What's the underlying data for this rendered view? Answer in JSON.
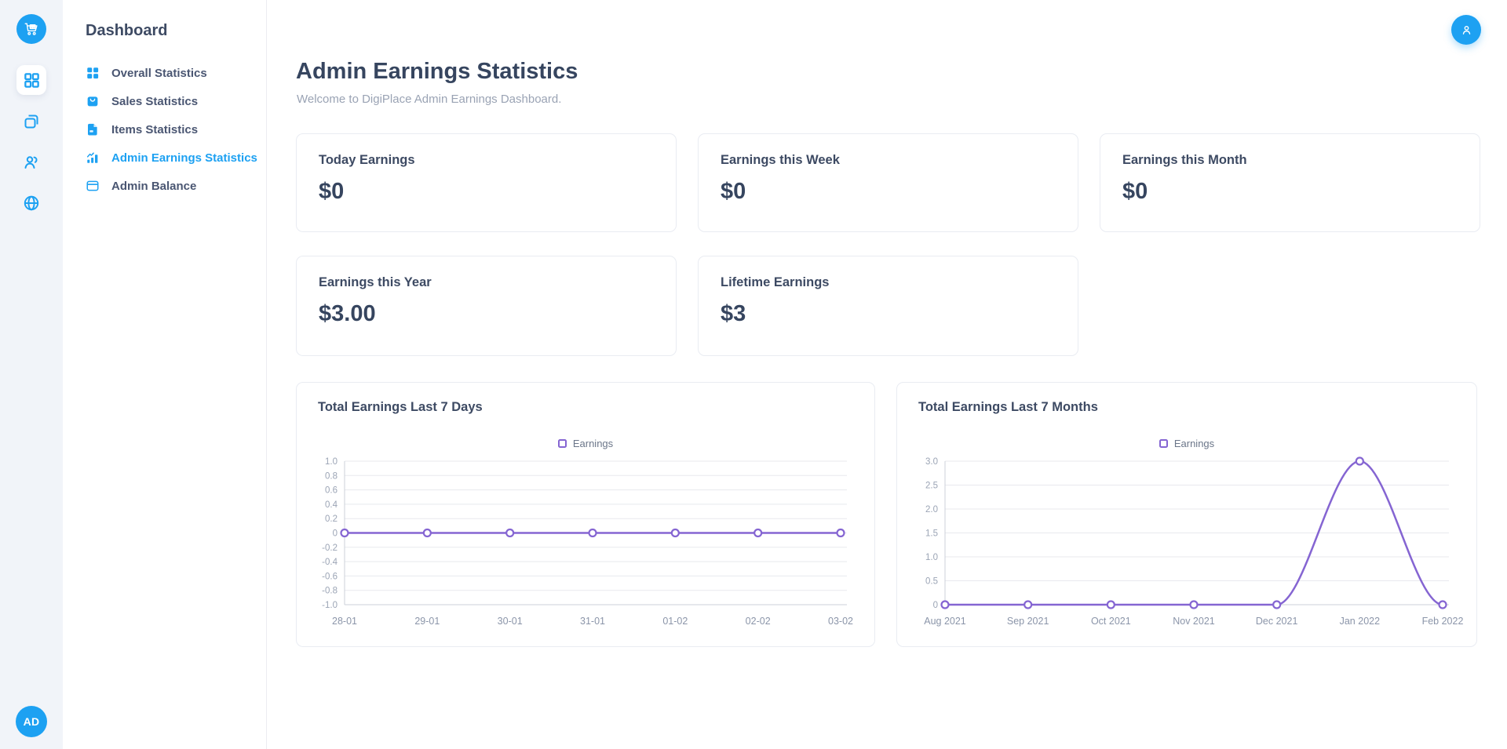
{
  "app": {
    "accent_color": "#1da1f2",
    "chart_line_color": "#8565d2"
  },
  "sidebar": {
    "avatar_initials": "AD",
    "panel_title": "Dashboard",
    "items": [
      {
        "label": "Overall Statistics",
        "icon": "grid-icon",
        "active": false
      },
      {
        "label": "Sales Statistics",
        "icon": "bag-icon",
        "active": false
      },
      {
        "label": "Items Statistics",
        "icon": "file-icon",
        "active": false
      },
      {
        "label": "Admin Earnings Statistics",
        "icon": "bar-chart-icon",
        "active": true
      },
      {
        "label": "Admin Balance",
        "icon": "credit-card-icon",
        "active": false
      }
    ]
  },
  "header": {
    "title": "Admin Earnings Statistics",
    "subtitle": "Welcome to DigiPlace Admin Earnings Dashboard."
  },
  "stat_cards": [
    {
      "label": "Today Earnings",
      "value": "$0"
    },
    {
      "label": "Earnings this Week",
      "value": "$0"
    },
    {
      "label": "Earnings this Month",
      "value": "$0"
    },
    {
      "label": "Earnings this Year",
      "value": "$3.00"
    },
    {
      "label": "Lifetime Earnings",
      "value": "$3"
    }
  ],
  "chart_data": [
    {
      "type": "line",
      "title": "Total Earnings Last 7 Days",
      "legend": "Earnings",
      "legend_position": "top-center",
      "categories": [
        "28-01",
        "29-01",
        "30-01",
        "31-01",
        "01-02",
        "02-02",
        "03-02"
      ],
      "values": [
        0,
        0,
        0,
        0,
        0,
        0,
        0
      ],
      "ylim": [
        -1,
        1
      ],
      "ytick_step": 0.2,
      "grid": true,
      "smooth": true,
      "markers": "open-circle"
    },
    {
      "type": "line",
      "title": "Total Earnings Last 7 Months",
      "legend": "Earnings",
      "legend_position": "top-center",
      "categories": [
        "Aug 2021",
        "Sep 2021",
        "Oct 2021",
        "Nov 2021",
        "Dec 2021",
        "Jan 2022",
        "Feb 2022"
      ],
      "values": [
        0,
        0,
        0,
        0,
        0,
        3,
        0
      ],
      "ylim": [
        0,
        3
      ],
      "ytick_step": 0.5,
      "grid": true,
      "smooth": true,
      "markers": "open-circle"
    }
  ]
}
